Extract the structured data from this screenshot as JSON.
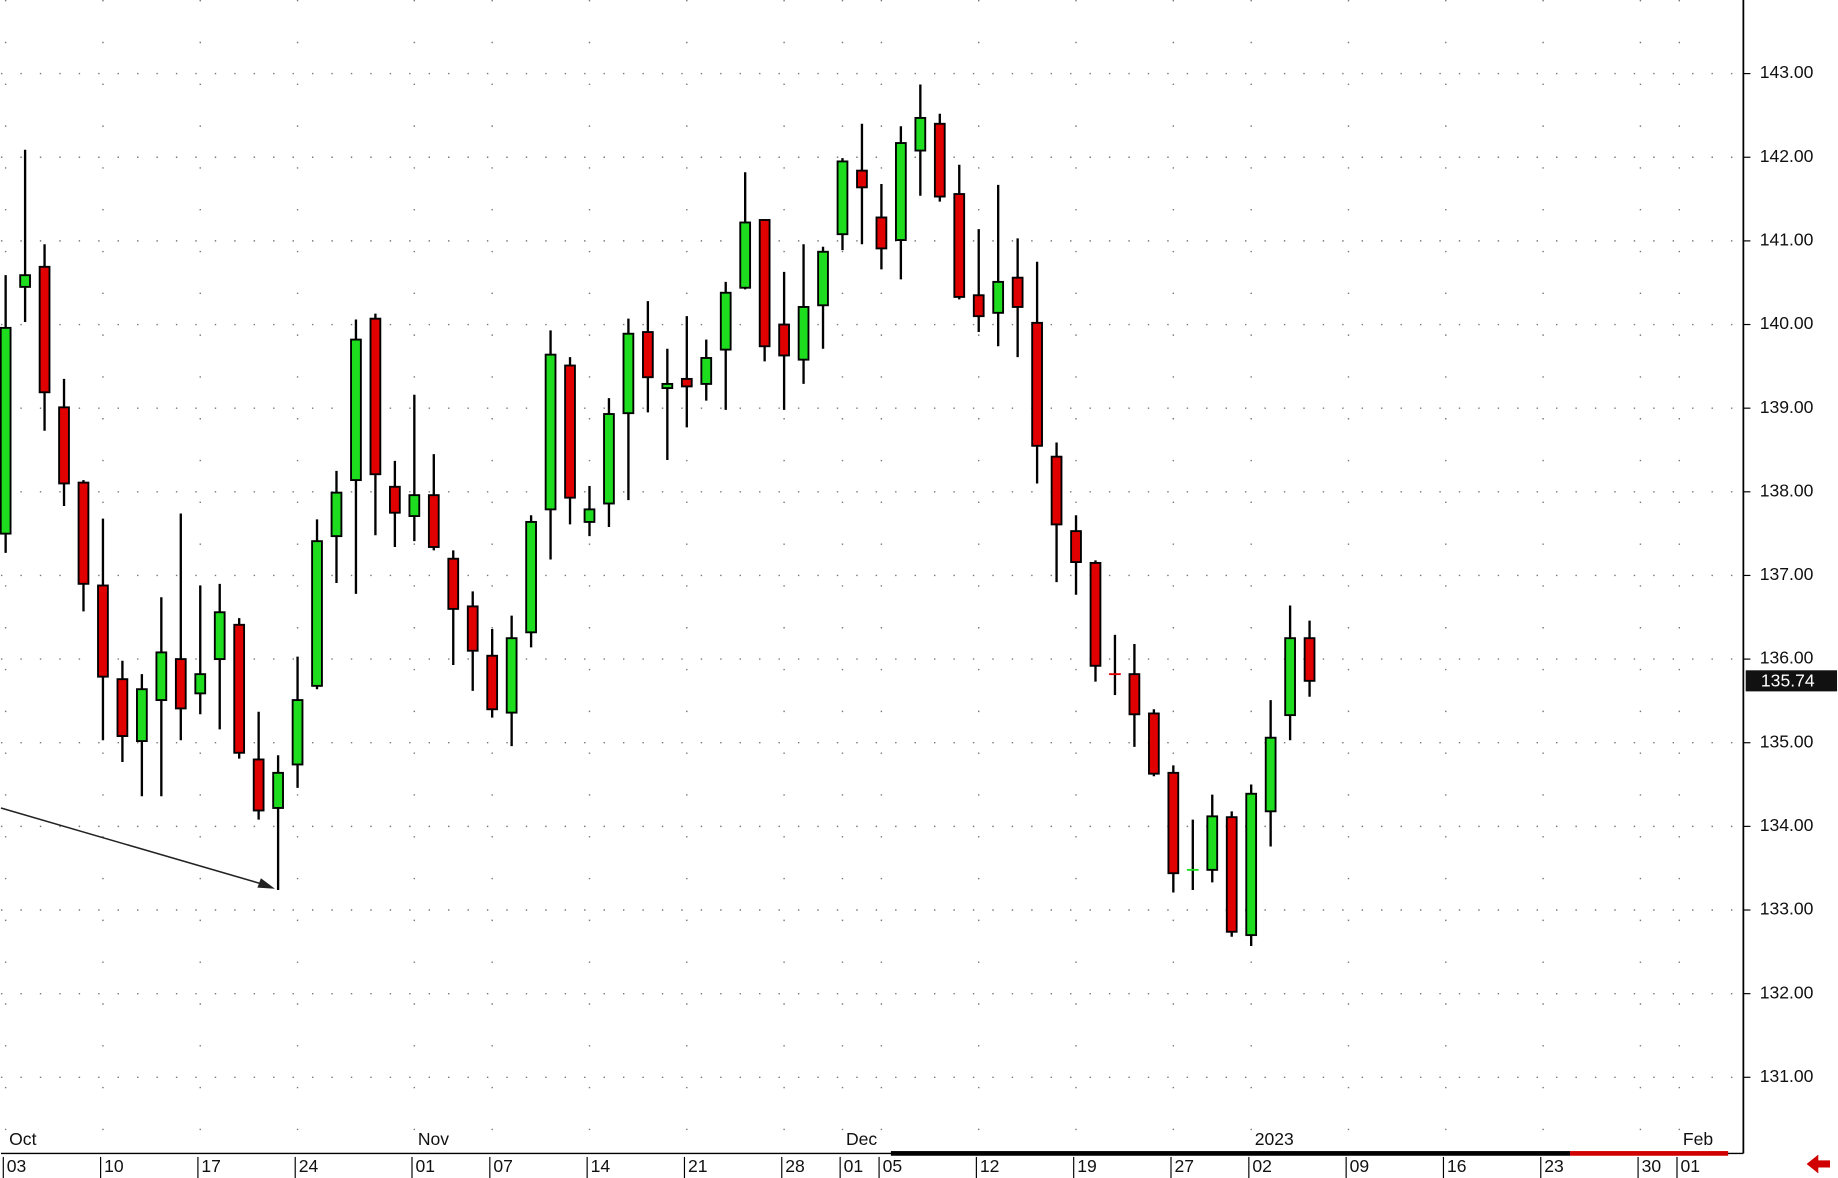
{
  "chart_data": {
    "type": "candlestick",
    "categories": [
      "03",
      null,
      null,
      null,
      null,
      "10",
      null,
      null,
      null,
      null,
      "17",
      null,
      null,
      null,
      null,
      "24",
      null,
      null,
      null,
      null,
      null,
      "01",
      null,
      null,
      null,
      "07",
      null,
      null,
      null,
      null,
      "14",
      null,
      null,
      null,
      null,
      "21",
      null,
      null,
      null,
      null,
      "28",
      null,
      null,
      "01",
      null,
      "05",
      null,
      null,
      null,
      null,
      "12",
      null,
      null,
      null,
      null,
      "19",
      null,
      null,
      null,
      null,
      "27",
      null,
      null,
      null,
      "02",
      null,
      null,
      null,
      null,
      "09",
      null,
      null,
      null,
      null,
      "16",
      null,
      null,
      null,
      null,
      "23",
      null,
      null,
      null,
      null,
      "30",
      null,
      "01",
      null,
      null
    ],
    "month_categories": [
      "Oct",
      null,
      null,
      null,
      null,
      null,
      null,
      null,
      null,
      null,
      null,
      null,
      null,
      null,
      null,
      null,
      null,
      null,
      null,
      null,
      null,
      "Nov",
      null,
      null,
      null,
      null,
      null,
      null,
      null,
      null,
      null,
      null,
      null,
      null,
      null,
      null,
      null,
      null,
      null,
      null,
      null,
      null,
      null,
      "Dec",
      null,
      null,
      null,
      null,
      null,
      null,
      null,
      null,
      null,
      null,
      null,
      null,
      null,
      null,
      null,
      null,
      null,
      null,
      null,
      null,
      "2023",
      null,
      null,
      null,
      null,
      null,
      null,
      null,
      null,
      null,
      null,
      null,
      null,
      null,
      null,
      null,
      null,
      null,
      null,
      null,
      null,
      null,
      "Feb",
      null,
      null
    ],
    "open": [
      137.5,
      140.45,
      140.69,
      139.01,
      138.11,
      136.88,
      135.76,
      135.02,
      135.51,
      136.0,
      135.59,
      136.0,
      136.41,
      134.8,
      134.22,
      134.74,
      135.68,
      137.47,
      138.14,
      140.07,
      138.06,
      137.71,
      137.96,
      137.2,
      136.63,
      136.04,
      135.36,
      136.32,
      137.79,
      139.51,
      137.64,
      137.86,
      138.94,
      139.91,
      139.24,
      139.35,
      139.29,
      139.7,
      140.44,
      141.25,
      140.0,
      139.58,
      140.23,
      141.08,
      141.84,
      141.28,
      141.01,
      142.08,
      142.4,
      141.56,
      140.35,
      140.14,
      140.56,
      140.02,
      138.42,
      137.53,
      137.15,
      135.82,
      135.82,
      135.35,
      134.64,
      133.46,
      133.48,
      134.11,
      132.7,
      134.18,
      135.33,
      136.25,
      null,
      null,
      null,
      null,
      null,
      null,
      null,
      null,
      null,
      null,
      null,
      null,
      null,
      null,
      null,
      null,
      null,
      null,
      null,
      null,
      null
    ],
    "high": [
      140.59,
      142.09,
      140.96,
      139.35,
      138.14,
      137.68,
      135.98,
      135.82,
      136.74,
      137.74,
      136.88,
      136.9,
      136.49,
      135.37,
      134.85,
      136.03,
      137.67,
      138.25,
      140.06,
      140.13,
      138.37,
      139.16,
      138.45,
      137.3,
      136.81,
      136.36,
      136.52,
      137.72,
      139.93,
      139.61,
      138.07,
      139.12,
      140.07,
      140.28,
      139.71,
      140.1,
      139.82,
      140.51,
      141.82,
      141.25,
      140.63,
      140.96,
      140.93,
      141.99,
      142.4,
      141.68,
      142.37,
      142.87,
      142.52,
      141.91,
      141.14,
      141.67,
      141.03,
      140.75,
      138.59,
      137.72,
      137.18,
      136.29,
      136.18,
      135.4,
      134.73,
      134.08,
      134.38,
      134.18,
      134.5,
      135.51,
      136.64,
      136.46,
      null,
      null,
      null,
      null,
      null,
      null,
      null,
      null,
      null,
      null,
      null,
      null,
      null,
      null,
      null,
      null,
      null,
      null,
      null,
      null,
      null
    ],
    "low": [
      137.27,
      140.03,
      138.73,
      137.83,
      136.57,
      135.03,
      134.77,
      134.36,
      134.36,
      135.03,
      135.34,
      135.16,
      134.81,
      134.08,
      133.24,
      134.46,
      135.64,
      136.91,
      136.78,
      137.48,
      137.34,
      137.41,
      137.3,
      135.93,
      135.62,
      135.3,
      134.96,
      136.14,
      137.19,
      137.61,
      137.47,
      137.58,
      137.9,
      138.95,
      138.38,
      138.77,
      139.09,
      138.98,
      140.42,
      139.56,
      138.98,
      139.29,
      139.71,
      140.89,
      140.96,
      140.66,
      140.54,
      141.54,
      141.47,
      140.3,
      139.91,
      139.74,
      139.61,
      138.1,
      136.92,
      136.77,
      135.73,
      135.57,
      134.95,
      134.6,
      133.21,
      133.24,
      133.33,
      132.68,
      132.57,
      133.76,
      135.03,
      135.55,
      null,
      null,
      null,
      null,
      null,
      null,
      null,
      null,
      null,
      null,
      null,
      null,
      null,
      null,
      null,
      null,
      null,
      null,
      null,
      null,
      null
    ],
    "close": [
      139.96,
      140.59,
      139.19,
      138.1,
      136.9,
      135.79,
      135.08,
      135.64,
      136.08,
      135.41,
      135.82,
      136.56,
      134.88,
      134.19,
      134.64,
      135.51,
      137.41,
      137.99,
      139.82,
      138.21,
      137.75,
      137.96,
      137.34,
      136.6,
      136.1,
      135.4,
      136.25,
      137.64,
      139.64,
      137.93,
      137.79,
      138.93,
      139.89,
      139.37,
      139.29,
      139.26,
      139.6,
      140.38,
      141.22,
      139.74,
      139.63,
      140.21,
      140.87,
      141.95,
      141.64,
      140.91,
      142.17,
      142.47,
      141.53,
      140.33,
      140.1,
      140.51,
      140.21,
      138.55,
      137.61,
      137.16,
      135.92,
      135.8,
      135.34,
      134.63,
      133.44,
      133.48,
      134.12,
      132.74,
      134.39,
      135.06,
      136.25,
      135.74,
      null,
      null,
      null,
      null,
      null,
      null,
      null,
      null,
      null,
      null,
      null,
      null,
      null,
      null,
      null,
      null,
      null,
      null,
      null,
      null,
      null
    ],
    "up_color": "#1edc1e",
    "down_color": "#e00000",
    "last_price": 135.74,
    "ylim": [
      130.09,
      143.88
    ],
    "yticks": [
      {
        "value": 131,
        "label": "131.00"
      },
      {
        "value": 132,
        "label": "132.00"
      },
      {
        "value": 133,
        "label": "133.00"
      },
      {
        "value": 134,
        "label": "134.00"
      },
      {
        "value": 135,
        "label": "135.00"
      },
      {
        "value": 136,
        "label": "136.00"
      },
      {
        "value": 137,
        "label": "137.00"
      },
      {
        "value": 138,
        "label": "138.00"
      },
      {
        "value": 139,
        "label": "139.00"
      },
      {
        "value": 140,
        "label": "140.00"
      },
      {
        "value": 141,
        "label": "141.00"
      },
      {
        "value": 142,
        "label": "142.00"
      },
      {
        "value": 143,
        "label": "143.00"
      }
    ],
    "grid": true
  }
}
